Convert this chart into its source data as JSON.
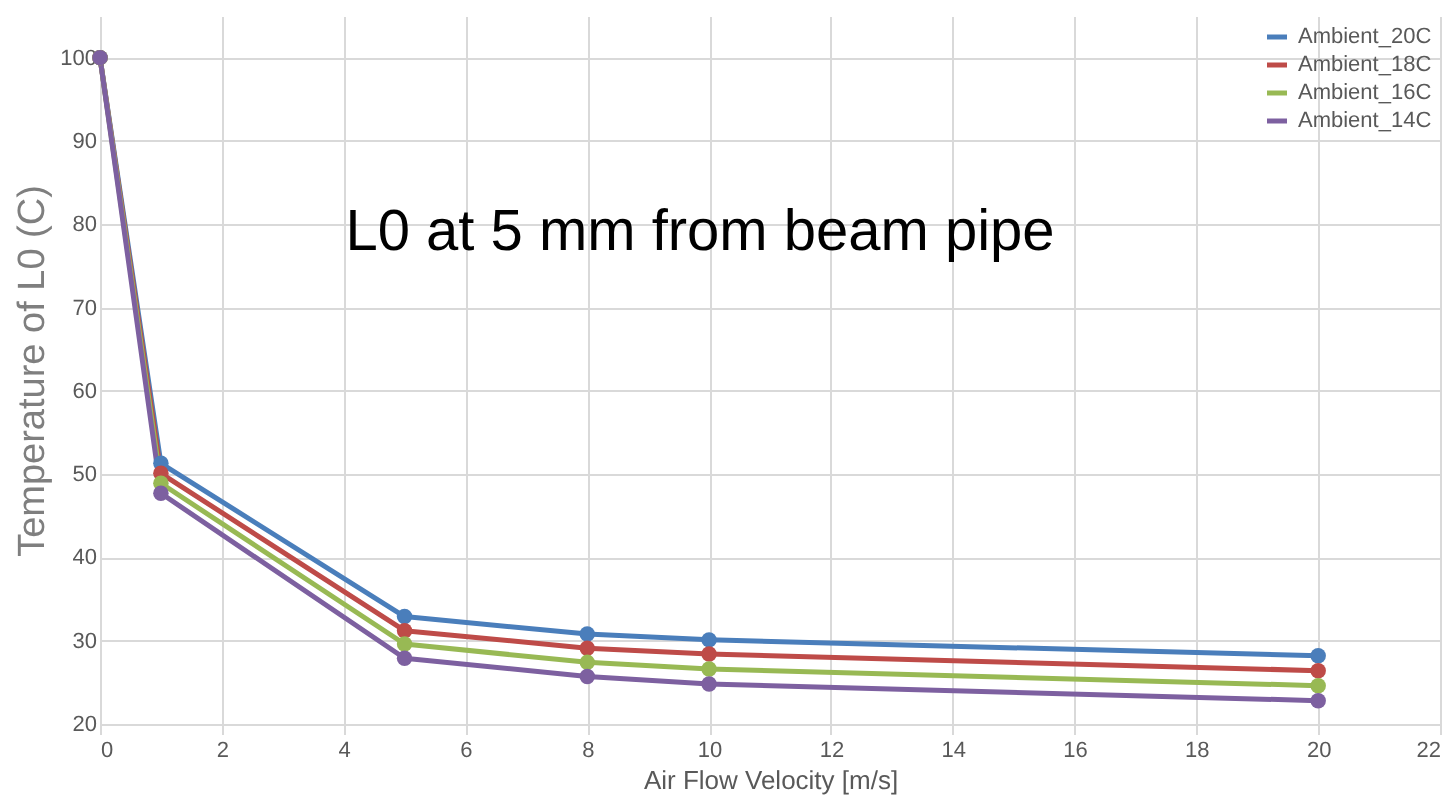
{
  "chart_data": {
    "type": "line",
    "title": "L0 at 5 mm from beam pipe",
    "xlabel": "Air Flow Velocity [m/s]",
    "ylabel": "Temperature of L0 (C)",
    "x": [
      0,
      1,
      5,
      8,
      10,
      20
    ],
    "series": [
      {
        "name": "Ambient_20C",
        "color": "#4a7ebb",
        "values": [
          100,
          51.3,
          32.9,
          30.8,
          30.1,
          28.2
        ]
      },
      {
        "name": "Ambient_18C",
        "color": "#be4b48",
        "values": [
          100,
          50.1,
          31.2,
          29.1,
          28.4,
          26.4
        ]
      },
      {
        "name": "Ambient_16C",
        "color": "#98b954",
        "values": [
          100,
          48.9,
          29.6,
          27.4,
          26.6,
          24.6
        ]
      },
      {
        "name": "Ambient_14C",
        "color": "#7d60a0",
        "values": [
          100,
          47.7,
          27.9,
          25.7,
          24.8,
          22.8
        ]
      }
    ],
    "xlim": [
      0,
      22
    ],
    "xticks": [
      0,
      2,
      4,
      6,
      8,
      10,
      12,
      14,
      16,
      18,
      20,
      22
    ],
    "ylim": [
      20,
      105
    ],
    "yticks": [
      20,
      30,
      40,
      50,
      60,
      70,
      80,
      90,
      100
    ],
    "grid": true,
    "legend": "top right",
    "marker": "circle",
    "line_style": "solid"
  }
}
